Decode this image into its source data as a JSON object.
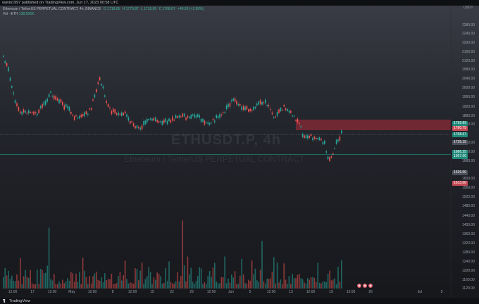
{
  "header": {
    "publish_note": "wavin1997 published on TradingView.com, Jun 17, 2023 00:58 UTC"
  },
  "symbol": {
    "name": "Ethereum / TetherUS PERPETUAL CONTRACT, 4h, BINANCE",
    "open": "O 1718.65",
    "high": "H 1779.87",
    "low": "L 1718.65",
    "close": "C 1768.67",
    "change": "+49.63 (+2.89%)",
    "volume_label": "Vol · ETH",
    "volume_value": "138.596K"
  },
  "watermark": {
    "ticker": "ETHUSDT.P, 4h",
    "name": "Ethereum / TetherUS PERPETUAL CONTRACT"
  },
  "axis": {
    "unit": "USDT",
    "y_ticks": [
      "2280.00",
      "2240.00",
      "2200.00",
      "2160.00",
      "2120.00",
      "2080.00",
      "2040.00",
      "2000.00",
      "1960.00",
      "1920.00",
      "1880.00",
      "1840.00",
      "1760.00",
      "1720.00",
      "1680.00",
      "1600.00",
      "1560.00",
      "1520.00",
      "1480.00",
      "1440.00",
      "1400.00",
      "1360.00",
      "1320.00",
      "1280.00",
      "1240.00",
      "1200.00",
      "1160.00",
      "1120.00"
    ],
    "x_ticks": [
      "12:00",
      "17",
      "12:00",
      "May",
      "12:00",
      "8",
      "12:00",
      "15",
      "22",
      "29",
      "12:00",
      "Jun",
      "5",
      "12:00",
      "13",
      "12:00",
      "19",
      "12:00",
      "26",
      "Jul",
      "5"
    ]
  },
  "price_tags": [
    {
      "label": "1799.89",
      "color": "#1f8a7a"
    },
    {
      "label": "1780.75",
      "color": "#c44a55"
    },
    {
      "label": "1768.67",
      "color": "#1f8a7a"
    },
    {
      "label": "1725.15",
      "color": "#4a4e58"
    },
    {
      "label": "1686.25",
      "color": "#1f8a7a"
    },
    {
      "label": "1667.00",
      "color": "#1f8a7a"
    },
    {
      "label": "1626.00",
      "color": "#4a4e58"
    },
    {
      "label": "1613.00",
      "color": "#c44a55"
    }
  ],
  "colors": {
    "up": "#26a69a",
    "down": "#ef5350",
    "zone": "#8b2a35",
    "support_line": "#1f8a7a"
  },
  "footer": {
    "brand": "TradingView"
  }
}
